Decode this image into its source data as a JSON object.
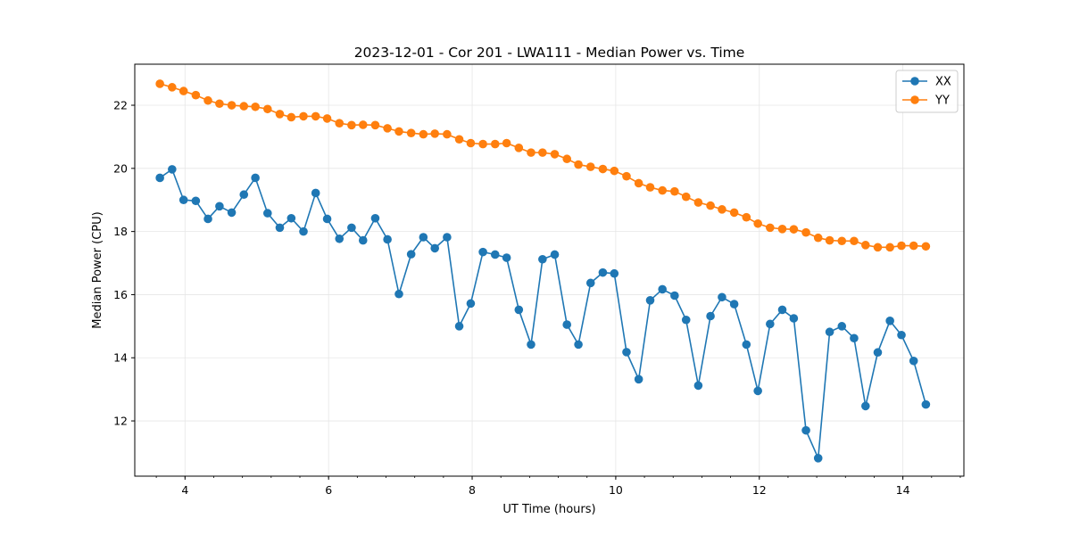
{
  "chart_data": {
    "type": "line",
    "title": "2023-12-01 - Cor 201 - LWA111 - Median Power vs. Time",
    "xlabel": "UT Time (hours)",
    "ylabel": "Median Power (CPU)",
    "xlim": [
      3.3,
      14.85
    ],
    "ylim": [
      10.25,
      23.3
    ],
    "xticks": [
      4,
      6,
      8,
      10,
      12,
      14
    ],
    "xtick_labels": [
      "4",
      "6",
      "8",
      "10",
      "12",
      "14"
    ],
    "yticks": [
      12,
      14,
      16,
      18,
      20,
      22
    ],
    "ytick_labels": [
      "12",
      "14",
      "16",
      "18",
      "20",
      "22"
    ],
    "grid": true,
    "legend_position": "top-right",
    "x": [
      3.65,
      3.82,
      3.98,
      4.15,
      4.32,
      4.48,
      4.65,
      4.82,
      4.98,
      5.15,
      5.32,
      5.48,
      5.65,
      5.82,
      5.98,
      6.15,
      6.32,
      6.48,
      6.65,
      6.82,
      6.98,
      7.15,
      7.32,
      7.48,
      7.65,
      7.82,
      7.98,
      8.15,
      8.32,
      8.48,
      8.65,
      8.82,
      8.98,
      9.15,
      9.32,
      9.48,
      9.65,
      9.82,
      9.98,
      10.15,
      10.32,
      10.48,
      10.65,
      10.82,
      10.98,
      11.15,
      11.32,
      11.48,
      11.65,
      11.82,
      11.98,
      12.15,
      12.32,
      12.48,
      12.65,
      12.82,
      12.98,
      13.15,
      13.32,
      13.48,
      13.65,
      13.82,
      13.98,
      14.15,
      14.32
    ],
    "series": [
      {
        "name": "XX",
        "color": "#1f77b4",
        "values": [
          19.7,
          19.97,
          19.0,
          18.97,
          18.4,
          18.8,
          18.6,
          19.17,
          19.7,
          18.58,
          18.12,
          18.42,
          18.0,
          19.22,
          18.4,
          17.77,
          18.12,
          17.72,
          18.42,
          17.75,
          16.02,
          17.28,
          17.82,
          17.47,
          17.82,
          15.0,
          15.72,
          17.35,
          17.27,
          17.17,
          15.52,
          14.42,
          17.12,
          17.27,
          15.05,
          14.42,
          16.37,
          16.7,
          16.67,
          14.18,
          13.32,
          15.82,
          16.17,
          15.97,
          15.2,
          13.12,
          15.32,
          15.92,
          15.7,
          14.42,
          12.95,
          15.07,
          15.52,
          15.25,
          11.7,
          10.82,
          14.82,
          15.0,
          14.62,
          12.47,
          14.17,
          15.17,
          14.72,
          13.9,
          12.52
        ]
      },
      {
        "name": "YY",
        "color": "#ff7f0e",
        "values": [
          22.68,
          22.57,
          22.45,
          22.32,
          22.15,
          22.05,
          22.0,
          21.97,
          21.95,
          21.88,
          21.72,
          21.62,
          21.65,
          21.65,
          21.58,
          21.43,
          21.37,
          21.38,
          21.37,
          21.27,
          21.17,
          21.12,
          21.08,
          21.1,
          21.08,
          20.92,
          20.8,
          20.77,
          20.77,
          20.8,
          20.65,
          20.5,
          20.5,
          20.45,
          20.3,
          20.12,
          20.05,
          19.98,
          19.92,
          19.75,
          19.53,
          19.4,
          19.3,
          19.27,
          19.1,
          18.92,
          18.82,
          18.7,
          18.6,
          18.45,
          18.25,
          18.12,
          18.08,
          18.07,
          17.97,
          17.8,
          17.72,
          17.7,
          17.7,
          17.57,
          17.5,
          17.5,
          17.55,
          17.55,
          17.53
        ]
      }
    ]
  }
}
